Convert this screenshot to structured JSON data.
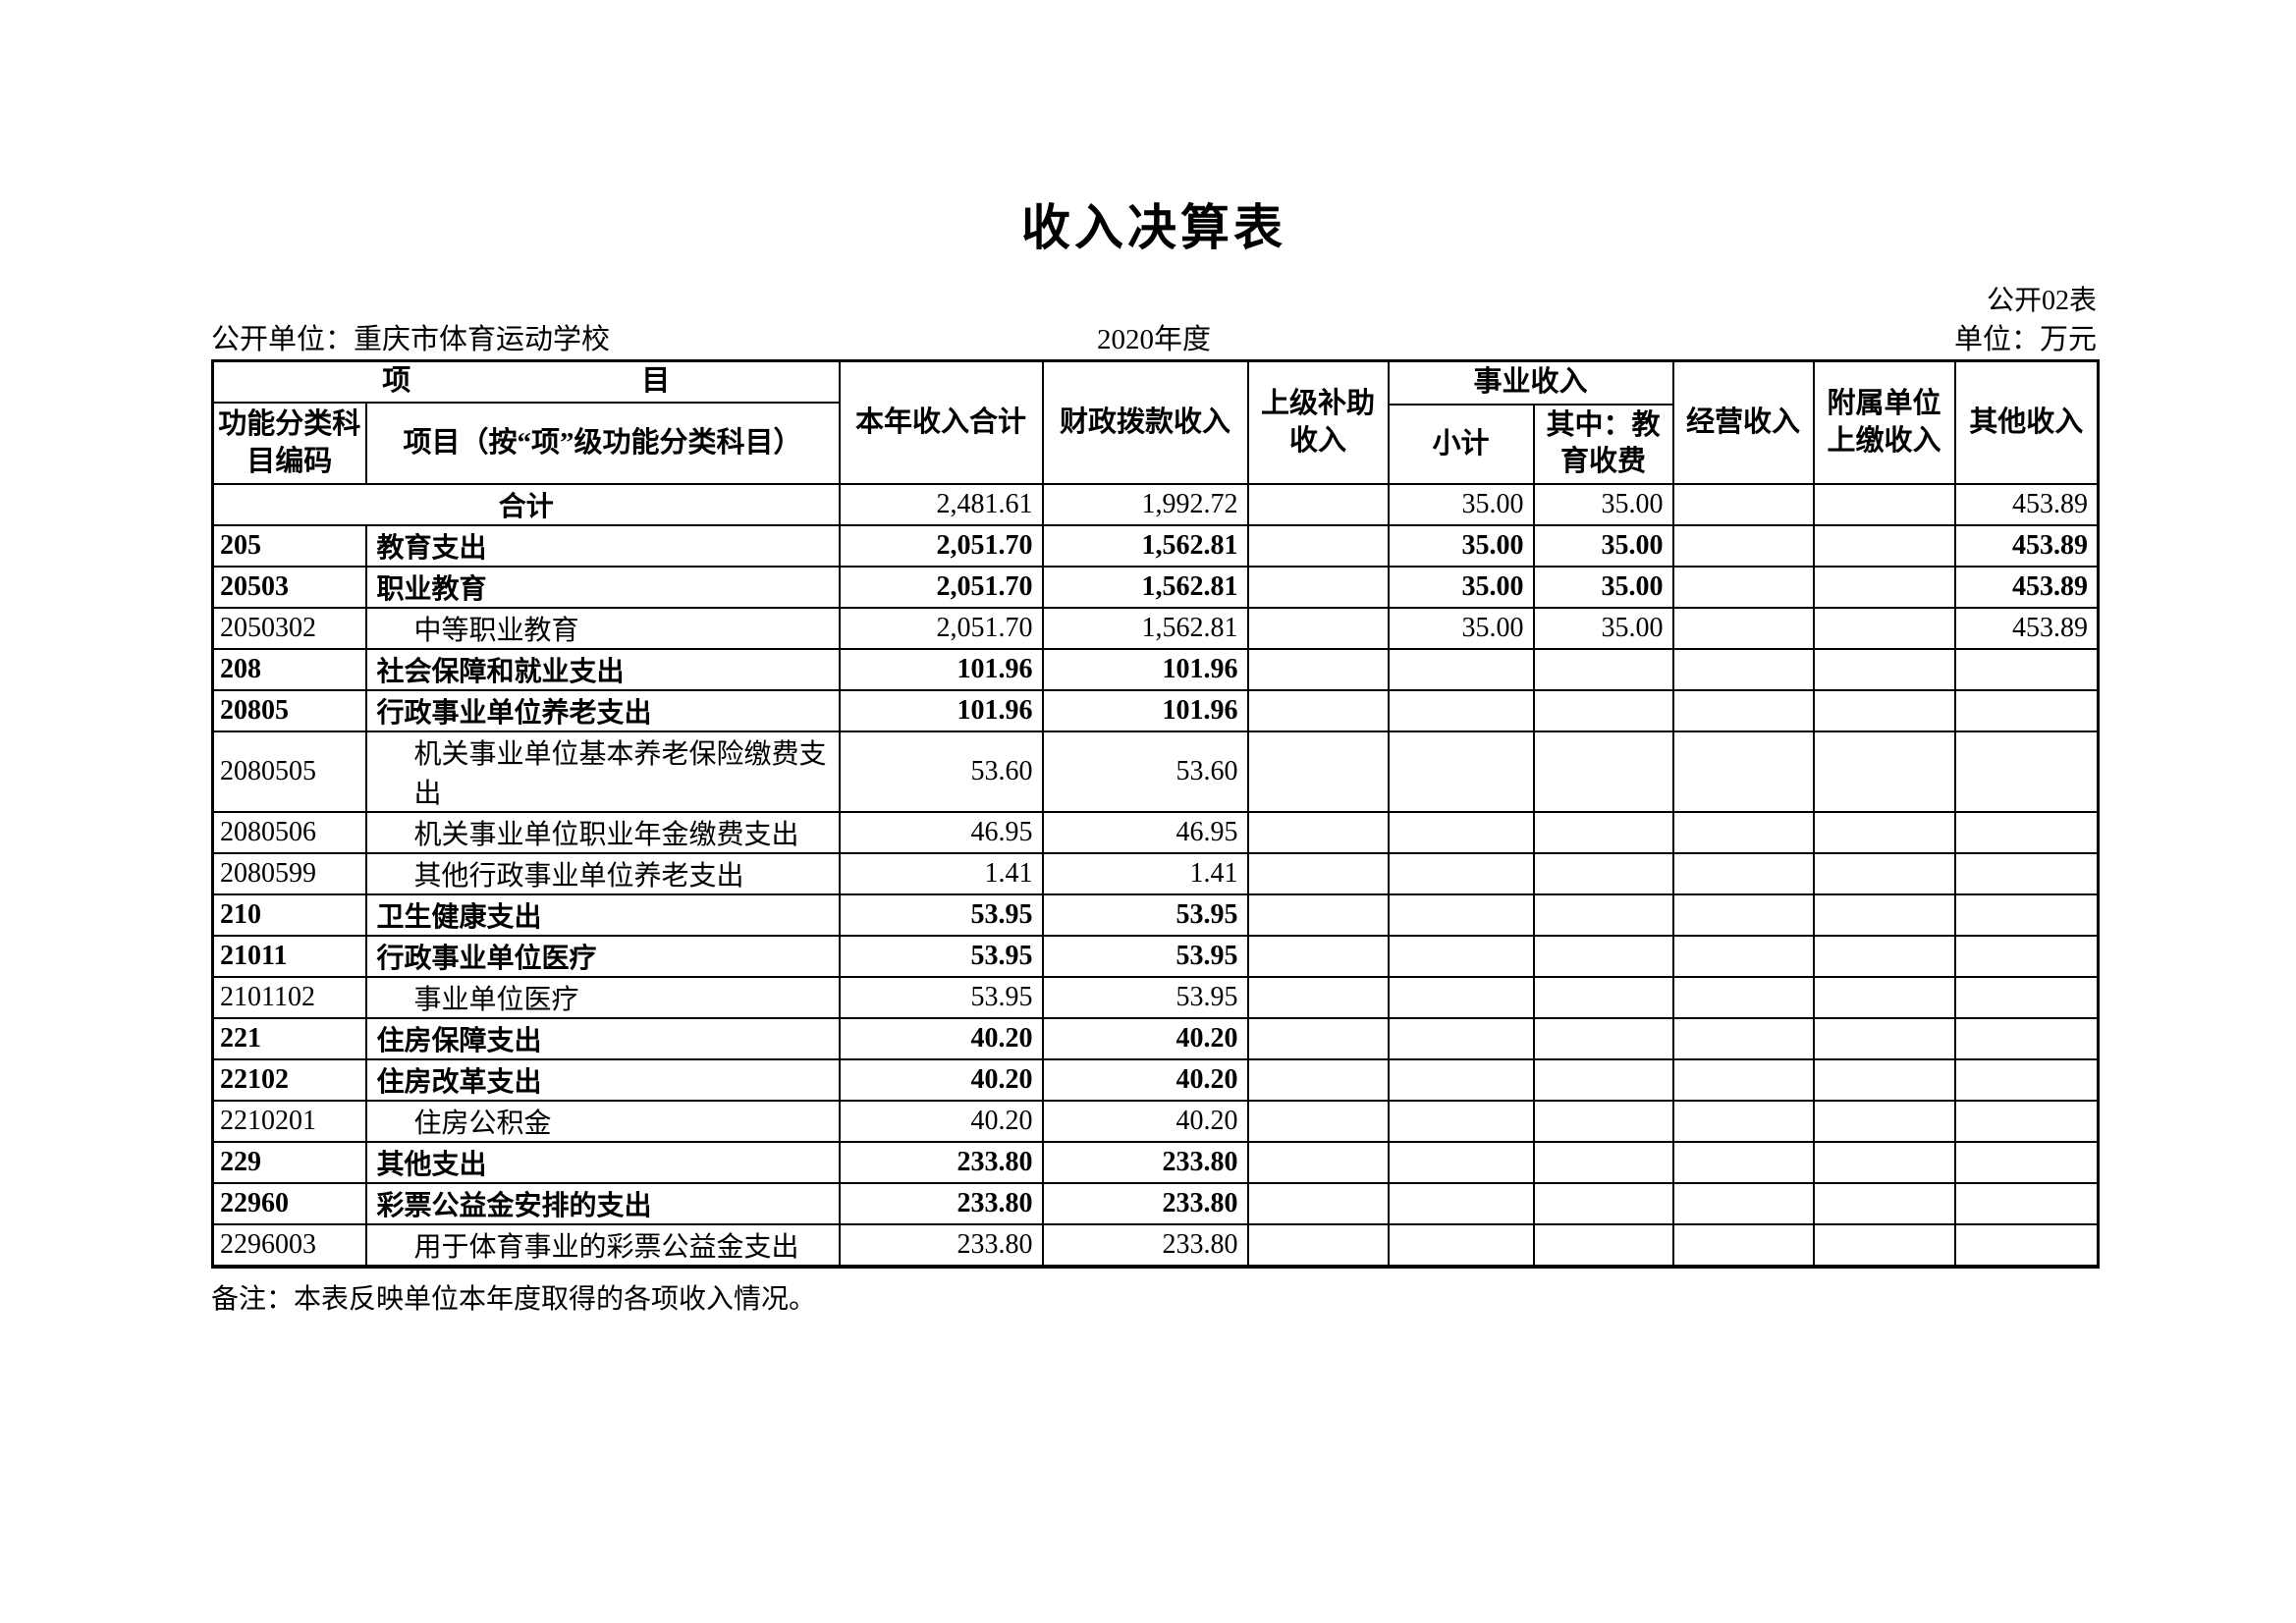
{
  "colors": {
    "text": "#000000",
    "background": "#ffffff",
    "border": "#000000"
  },
  "page": {
    "title": "收入决算表",
    "sheet_code": "公开02表",
    "org": "公开单位：重庆市体育运动学校",
    "year": "2020年度",
    "unit": "单位：万元",
    "note": "备注：本表反映单位本年度取得的各项收入情况。"
  },
  "header": {
    "project_1": "项",
    "project_2": "目",
    "code_label": "功能分类科目编码",
    "item_label": "项目（按“项”级功能分类科目）",
    "total": "本年收入合计",
    "fiscal": "财政拨款收入",
    "superior": "上级补助收入",
    "business": "事业收入",
    "subtotal": "小计",
    "edu_fee": "其中：教育收费",
    "operating": "经营收入",
    "affiliated": "附属单位上缴收入",
    "other": "其他收入"
  },
  "rows": [
    {
      "code": "",
      "item": "合计",
      "merged": true,
      "bold": false,
      "indent": false,
      "values": [
        "2,481.61",
        "1,992.72",
        "",
        "35.00",
        "35.00",
        "",
        "",
        "453.89"
      ]
    },
    {
      "code": "205",
      "item": "教育支出",
      "merged": false,
      "bold": true,
      "indent": false,
      "values": [
        "2,051.70",
        "1,562.81",
        "",
        "35.00",
        "35.00",
        "",
        "",
        "453.89"
      ]
    },
    {
      "code": "20503",
      "item": "职业教育",
      "merged": false,
      "bold": true,
      "indent": false,
      "values": [
        "2,051.70",
        "1,562.81",
        "",
        "35.00",
        "35.00",
        "",
        "",
        "453.89"
      ]
    },
    {
      "code": "2050302",
      "item": "中等职业教育",
      "merged": false,
      "bold": false,
      "indent": true,
      "values": [
        "2,051.70",
        "1,562.81",
        "",
        "35.00",
        "35.00",
        "",
        "",
        "453.89"
      ]
    },
    {
      "code": "208",
      "item": "社会保障和就业支出",
      "merged": false,
      "bold": true,
      "indent": false,
      "values": [
        "101.96",
        "101.96",
        "",
        "",
        "",
        "",
        "",
        ""
      ]
    },
    {
      "code": "20805",
      "item": "行政事业单位养老支出",
      "merged": false,
      "bold": true,
      "indent": false,
      "values": [
        "101.96",
        "101.96",
        "",
        "",
        "",
        "",
        "",
        ""
      ]
    },
    {
      "code": "2080505",
      "item": "机关事业单位基本养老保险缴费支出",
      "merged": false,
      "bold": false,
      "indent": true,
      "values": [
        "53.60",
        "53.60",
        "",
        "",
        "",
        "",
        "",
        ""
      ]
    },
    {
      "code": "2080506",
      "item": "机关事业单位职业年金缴费支出",
      "merged": false,
      "bold": false,
      "indent": true,
      "values": [
        "46.95",
        "46.95",
        "",
        "",
        "",
        "",
        "",
        ""
      ]
    },
    {
      "code": "2080599",
      "item": "其他行政事业单位养老支出",
      "merged": false,
      "bold": false,
      "indent": true,
      "values": [
        "1.41",
        "1.41",
        "",
        "",
        "",
        "",
        "",
        ""
      ]
    },
    {
      "code": "210",
      "item": "卫生健康支出",
      "merged": false,
      "bold": true,
      "indent": false,
      "values": [
        "53.95",
        "53.95",
        "",
        "",
        "",
        "",
        "",
        ""
      ]
    },
    {
      "code": "21011",
      "item": "行政事业单位医疗",
      "merged": false,
      "bold": true,
      "indent": false,
      "values": [
        "53.95",
        "53.95",
        "",
        "",
        "",
        "",
        "",
        ""
      ]
    },
    {
      "code": "2101102",
      "item": "事业单位医疗",
      "merged": false,
      "bold": false,
      "indent": true,
      "values": [
        "53.95",
        "53.95",
        "",
        "",
        "",
        "",
        "",
        ""
      ]
    },
    {
      "code": "221",
      "item": "住房保障支出",
      "merged": false,
      "bold": true,
      "indent": false,
      "values": [
        "40.20",
        "40.20",
        "",
        "",
        "",
        "",
        "",
        ""
      ]
    },
    {
      "code": "22102",
      "item": "住房改革支出",
      "merged": false,
      "bold": true,
      "indent": false,
      "values": [
        "40.20",
        "40.20",
        "",
        "",
        "",
        "",
        "",
        ""
      ]
    },
    {
      "code": "2210201",
      "item": "住房公积金",
      "merged": false,
      "bold": false,
      "indent": true,
      "values": [
        "40.20",
        "40.20",
        "",
        "",
        "",
        "",
        "",
        ""
      ]
    },
    {
      "code": "229",
      "item": "其他支出",
      "merged": false,
      "bold": true,
      "indent": false,
      "values": [
        "233.80",
        "233.80",
        "",
        "",
        "",
        "",
        "",
        ""
      ]
    },
    {
      "code": "22960",
      "item": "彩票公益金安排的支出",
      "merged": false,
      "bold": true,
      "indent": false,
      "values": [
        "233.80",
        "233.80",
        "",
        "",
        "",
        "",
        "",
        ""
      ]
    },
    {
      "code": "2296003",
      "item": "用于体育事业的彩票公益金支出",
      "merged": false,
      "bold": false,
      "indent": true,
      "values": [
        "233.80",
        "233.80",
        "",
        "",
        "",
        "",
        "",
        ""
      ]
    }
  ]
}
